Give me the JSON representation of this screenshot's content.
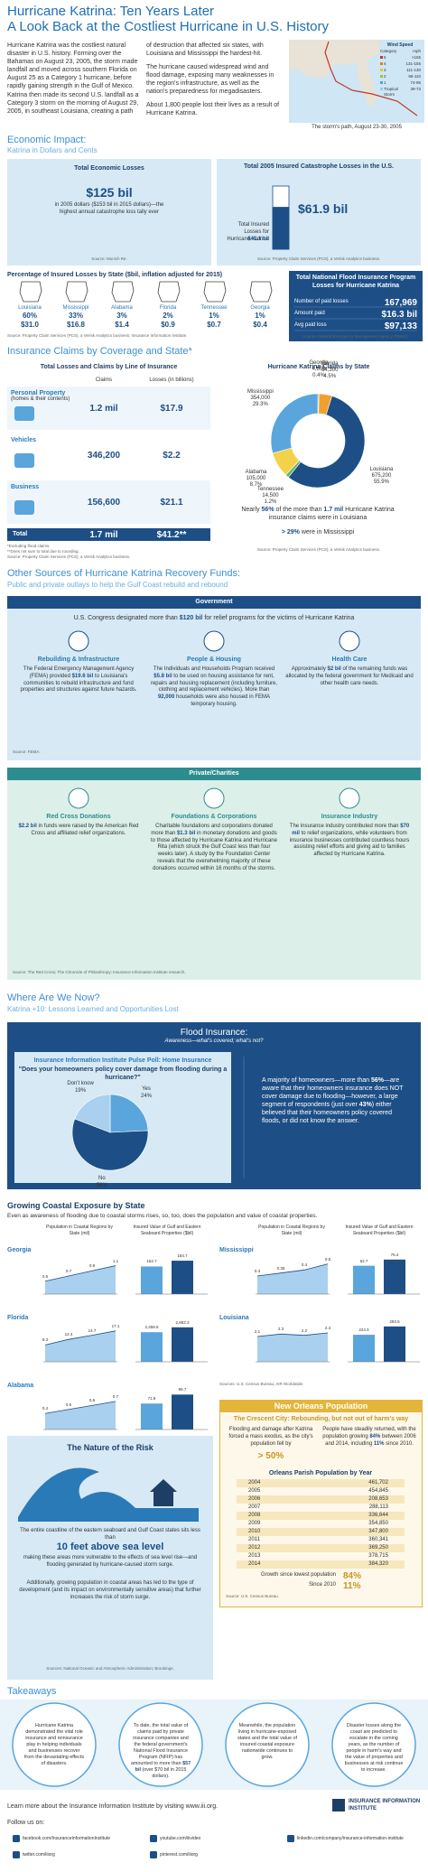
{
  "header": {
    "title": "Hurricane Katrina: Ten Years Later",
    "subtitle": "A Look Back at the Costliest Hurricane in U.S. History",
    "intro": [
      "Hurricane Katrina was the costliest natural disaster in U.S. history. Forming over the Bahamas on August 23, 2005, the storm made landfall and moved across southern Florida on August 25 as a Category 1 hurricane, before rapidly gaining strength in the Gulf of Mexico.",
      "Katrina then made its second U.S. landfall as a Category 3 storm on the morning of August 29, 2005, in southeast Louisiana, creating a path",
      "of destruction that affected six states, with Louisiana and Mississippi the hardest-hit.",
      "The hurricane caused widespread wind and flood damage, exposing many weaknesses in the region's infrastructure, as well as the nation's preparedness for megadisasters.",
      "About 1,800 people lost their lives as a result of Hurricane Katrina."
    ],
    "map_caption": "The storm's path, August 23-30, 2005",
    "legend": {
      "title": "Wind Speed",
      "header": [
        "Category",
        "mph"
      ],
      "rows": [
        [
          "5",
          ">155"
        ],
        [
          "4",
          "131-155"
        ],
        [
          "3",
          "111-130"
        ],
        [
          "2",
          "96-110"
        ],
        [
          "1",
          "74-95"
        ],
        [
          "Tropical Storm",
          "39-73"
        ]
      ],
      "colors": [
        "#c0392b",
        "#e67e22",
        "#f1c40f",
        "#9bc53d",
        "#4aa3df",
        "#9ec9e8"
      ]
    }
  },
  "economic": {
    "heading": "Economic Impact:",
    "subheading": "Katrina in Dollars and Cents",
    "total_losses": {
      "title": "Total Economic Losses",
      "value": "$125 bil",
      "note": "in 2005 dollars ($153 bil in 2015 dollars)—the highest annual catastrophe loss tally ever",
      "source": "Source: Munich Re."
    },
    "insured": {
      "title": "Total 2005 Insured Catastrophe Losses in the U.S.",
      "bar_label": "Total Insured Losses for Hurricane Katrina",
      "values": [
        41.1,
        61.9
      ],
      "value_labels": [
        "$41.1 bil",
        "$61.9 bil"
      ],
      "colors": [
        "#1d4f86",
        "#ffffff"
      ],
      "source": "Source: Property Claim Services (PCS), a Verisk Analytics business."
    },
    "by_state": {
      "title": "Percentage of Insured Losses by State ($bil, inflation adjusted for 2015)",
      "rows": [
        {
          "state": "Louisiana",
          "pct": "60%",
          "amount": "$31.0"
        },
        {
          "state": "Mississippi",
          "pct": "33%",
          "amount": "$16.8"
        },
        {
          "state": "Alabama",
          "pct": "3%",
          "amount": "$1.4"
        },
        {
          "state": "Florida",
          "pct": "2%",
          "amount": "$0.9"
        },
        {
          "state": "Tennessee",
          "pct": "1%",
          "amount": "$0.7"
        },
        {
          "state": "Georgia",
          "pct": "1%",
          "amount": "$0.4"
        }
      ],
      "source": "Source: Property Claim Services (PCS), a Verisk Analytics business; Insurance Information Institute."
    },
    "flood": {
      "title": "Total National Flood Insurance Program Losses for Hurricane Katrina",
      "rows": [
        [
          "Number of paid losses",
          "167,969"
        ],
        [
          "Amount paid",
          "$16.3 bil"
        ],
        [
          "Avg paid loss",
          "$97,133"
        ]
      ],
      "source": "Source: Federal Emergency Management Agency (FEMA)."
    }
  },
  "claims": {
    "heading": "Insurance Claims by Coverage and State*",
    "table_title": "Total Losses and Claims by Line of Insurance",
    "columns": [
      "Claims",
      "Losses (in billions)"
    ],
    "rows": [
      {
        "label": "Personal Property",
        "sub": "(homes & their contents)",
        "claims": "1.2 mil",
        "losses": "$17.9"
      },
      {
        "label": "Vehicles",
        "claims": "346,200",
        "losses": "$2.2"
      },
      {
        "label": "Business",
        "claims": "156,600",
        "losses": "$21.1"
      }
    ],
    "total": {
      "label": "Total",
      "claims": "1.7 mil",
      "losses": "$41.2**"
    },
    "footnotes": [
      "*Excluding flood claims.",
      "**Does not sum to total due to rounding."
    ],
    "source": "Source: Property Claim Services (PCS), a Verisk Analytics business.",
    "by_state": {
      "type": "pie",
      "title": "Hurricane Katrina Claims by State",
      "states": [
        "Georgia",
        "Florida",
        "Louisiana",
        "Tennessee",
        "Alabama",
        "Mississippi"
      ],
      "claims": [
        "4,800",
        "54,300",
        "675,200",
        "14,500",
        "105,000",
        "354,000"
      ],
      "values": [
        0.4,
        4.5,
        55.9,
        1.2,
        8.7,
        29.3
      ],
      "value_labels": [
        "0.4%",
        "4.5%",
        "55.9%",
        "1.2%",
        "8.7%",
        "29.3%"
      ],
      "colors": [
        "#9aa5ad",
        "#f0a030",
        "#1d4f86",
        "#6bb36b",
        "#f2d24b",
        "#5aa5dc"
      ],
      "caption1": [
        "Nearly ",
        {
          "text": "56%",
          "bold": true
        },
        " of the more than ",
        {
          "text": "1.7 mil",
          "bold": true
        },
        " Hurricane Katrina insurance claims were in Louisiana"
      ],
      "caption2": [
        {
          "text": "> 29%",
          "bold": true
        },
        " were in Mississippi"
      ],
      "source": "Source: Property Claim Services (PCS), a Verisk Analytics business."
    }
  },
  "recovery": {
    "heading": "Other Sources of Hurricane Katrina Recovery Funds:",
    "subheading": "Public and private outlays to help the Gulf Coast rebuild and rebound",
    "government": {
      "title": "Government",
      "lead": [
        "U.S. Congress designated more than ",
        {
          "text": "$120 bil",
          "bold": true
        },
        " for relief programs for the victims of Hurricane Katrina"
      ],
      "items": [
        {
          "title": "Rebuilding & Infrastructure",
          "text": [
            "The Federal Emergency Management Agency (FEMA) provided ",
            {
              "text": "$19.6 bil",
              "bold": true
            },
            " to Louisiana's communities to rebuild infrastructure and fund properties and structures against future hazards."
          ]
        },
        {
          "title": "People & Housing",
          "text": [
            "The Individuals and Households Program received ",
            {
              "text": "$5.8 bil",
              "bold": true
            },
            " to be used on housing assistance for rent, repairs and housing replacement (including furniture, clothing and replacement vehicles). More than ",
            {
              "text": "92,000",
              "bold": true
            },
            " households were also housed in FEMA temporary housing."
          ]
        },
        {
          "title": "Health Care",
          "text": [
            "Approximately ",
            {
              "text": "$2 bil",
              "bold": true
            },
            " of the remaining funds was allocated by the federal government for Medicaid and other health care needs."
          ]
        }
      ],
      "source": "Source: FEMA."
    },
    "private": {
      "title": "Private/Charities",
      "items": [
        {
          "title": "Red Cross Donations",
          "text": [
            {
              "text": "$2.2 bil",
              "bold": true
            },
            " in funds were raised by the American Red Cross and affiliated relief organizations."
          ]
        },
        {
          "title": "Foundations & Corporations",
          "text": [
            "Charitable foundations and corporations donated more than ",
            {
              "text": "$1.3 bil",
              "bold": true
            },
            " in monetary donations and goods to those affected by Hurricane Katrina and Hurricane Rita (which struck the Gulf Coast less than four weeks later). A study by the Foundation Center reveals that the overwhelming majority of these donations occurred within 16 months of the storms."
          ]
        },
        {
          "title": "Insurance Industry",
          "text": [
            "The insurance industry contributed more than ",
            {
              "text": "$70 mil",
              "bold": true
            },
            " to relief organizations, while volunteers from insurance businesses contributed countless hours assisting relief efforts and giving aid to families affected by Hurricane Katrina."
          ]
        }
      ],
      "source": "Source: The Red Cross; The Chronicle of Philanthropy; Insurance Information Institute research."
    }
  },
  "now": {
    "heading": "Where Are We Now?",
    "subheading": "Katrina +10: Lessons Learned and Opportunities Lost",
    "flood": {
      "title": "Flood Insurance:",
      "subtitle": "Awareness—what's covered; what's not?",
      "poll_title": "Insurance Information Institute Pulse Poll: Home Insurance",
      "question": "\"Does your homeowners policy cover damage from flooding during a hurricane?\"",
      "poll": {
        "type": "pie",
        "categories": [
          "Yes",
          "No",
          "Don't know"
        ],
        "values": [
          24,
          56,
          19
        ],
        "value_labels": [
          "24%",
          "56%",
          "19%"
        ],
        "colors": [
          "#5aa5dc",
          "#1d4f86",
          "#a9d0ee"
        ]
      },
      "text": [
        "A majority of homeowners—more than ",
        {
          "text": "56%",
          "bold": true
        },
        "—are aware that their homeowners insurance does NOT cover damage due to flooding—however, a large segment of respondents (just over ",
        {
          "text": "43%",
          "bold": true
        },
        ") either believed that their homeowners policy covered floods, or did not know the answer."
      ]
    }
  },
  "coastal": {
    "title": "Growing Coastal Exposure by State",
    "subtitle": "Even as awareness of flooding due to coastal storms rises, so, too, does the population and value of coastal properties.",
    "population_header": "Population in Coastal Regions by State (mil)",
    "property_header": "Insured Value of Gulf and Eastern Seaboard Properties ($bil)",
    "states": [
      {
        "name": "Georgia",
        "population": {
          "values": [
            0.5,
            0.7,
            0.9,
            1.1
          ],
          "ylim": [
            0,
            1.4
          ]
        },
        "property": {
          "values": [
            152.7,
            184.7
          ],
          "ylim": [
            0,
            200
          ]
        }
      },
      {
        "name": "Florida",
        "population": {
          "values": [
            9.3,
            12.4,
            14.7,
            17.1
          ],
          "ylim": [
            0,
            20
          ]
        },
        "property": {
          "values": [
            2458.6,
            2862.3
          ],
          "value_labels": [
            "2,458.6",
            "2,862.3"
          ],
          "ylim": [
            0,
            3000
          ]
        }
      },
      {
        "name": "Alabama",
        "population": {
          "values": [
            0.4,
            0.5,
            0.6,
            0.7
          ],
          "ylim": [
            0,
            0.9
          ]
        },
        "property": {
          "values": [
            71.9,
            96.7
          ],
          "ylim": [
            0,
            100
          ]
        }
      },
      {
        "name": "Mississippi",
        "population": {
          "values": [
            0.3,
            0.35,
            0.4,
            0.5
          ],
          "ylim": [
            0,
            0.6
          ]
        },
        "property": {
          "values": [
            62.7,
            76.4
          ],
          "ylim": [
            0,
            80
          ]
        }
      },
      {
        "name": "Louisiana",
        "population": {
          "values": [
            2.1,
            2.3,
            2.2,
            2.4
          ],
          "ylim": [
            0,
            3
          ]
        },
        "property": {
          "values": [
            224.4,
            293.5
          ],
          "ylim": [
            0,
            300
          ]
        }
      }
    ],
    "source": "Sources: U.S. Census Bureau; AIR Worldwide."
  },
  "risk": {
    "title": "The Nature of the Risk",
    "text": [
      "The entire coastline of the eastern seaboard and Gulf Coast states sits less than"
    ],
    "highlight": "10 feet above sea level",
    "text2": "making these areas more vulnerable to the effects of sea level rise—and flooding generated by hurricane-caused storm surge.",
    "text3": "Additionally, growing population in coastal areas has led to the type of development (and its impact on environmentally sensitive areas) that further increases the risk of storm surge.",
    "source": "Sources: National Oceanic and Atmospheric Administration; Brookings."
  },
  "new_orleans": {
    "title": "New Orleans Population",
    "subtitle": "The Crescent City: Rebounding, but not out of harm's way",
    "left": "Flooding and damage after Katrina forced a mass exodus, as the city's population fell by",
    "left_value": "> 50%",
    "right": [
      "People have steadily returned, with the population growing ",
      {
        "text": "84%",
        "bold": true
      },
      " between 2006 and 2014, including ",
      {
        "text": "11%",
        "bold": true
      },
      " since 2010."
    ],
    "table_title": "Orleans Parish Population by Year",
    "rows": [
      [
        "2004",
        "461,702"
      ],
      [
        "2005",
        "454,845"
      ],
      [
        "2006",
        "208,653"
      ],
      [
        "2007",
        "288,113"
      ],
      [
        "2008",
        "336,644"
      ],
      [
        "2009",
        "354,850"
      ],
      [
        "2010",
        "347,800"
      ],
      [
        "2011",
        "360,341"
      ],
      [
        "2012",
        "369,250"
      ],
      [
        "2013",
        "378,715"
      ],
      [
        "2014",
        "384,320"
      ]
    ],
    "growth": [
      [
        "Growth since lowest population",
        "84%"
      ],
      [
        "Since 2010",
        "11%"
      ]
    ],
    "source": "Source: U.S. Census Bureau."
  },
  "takeaways": {
    "heading": "Takeaways",
    "items": [
      [
        "Hurricane Katrina demonstrated the vital role insurance and reinsurance play in helping individuals and businesses recover from the devastating effects of disasters."
      ],
      [
        "To date, the total value of claims paid by private insurance companies and the federal government's National Flood Insurance Program (NFIP) has amounted to more than ",
        {
          "text": "$57 bil",
          "bold": true
        },
        " (over $70 bil in 2015 dollars)."
      ],
      [
        "Meanwhile, the population living in hurricane-exposed states and the total value of insured coastal exposure nationwide continues to grow."
      ],
      [
        "Disaster losses along the coast are predicted to escalate in the coming years, as the number of people in harm's way and the value of properties and businesses at risk continue to increase."
      ]
    ]
  },
  "footer": {
    "learn_more": "Learn more about the Insurance Information Institute by visiting www.iii.org.",
    "follow": "Follow us on:",
    "logo": "INSURANCE INFORMATION INSTITUTE",
    "links": [
      "facebook.com/InsuranceInformationInstitute",
      "youtube.com/iiivideo",
      "linkedin.com/company/insurance-information-institute",
      "twitter.com/iiiorg",
      "pinterest.com/iiiorg"
    ]
  }
}
